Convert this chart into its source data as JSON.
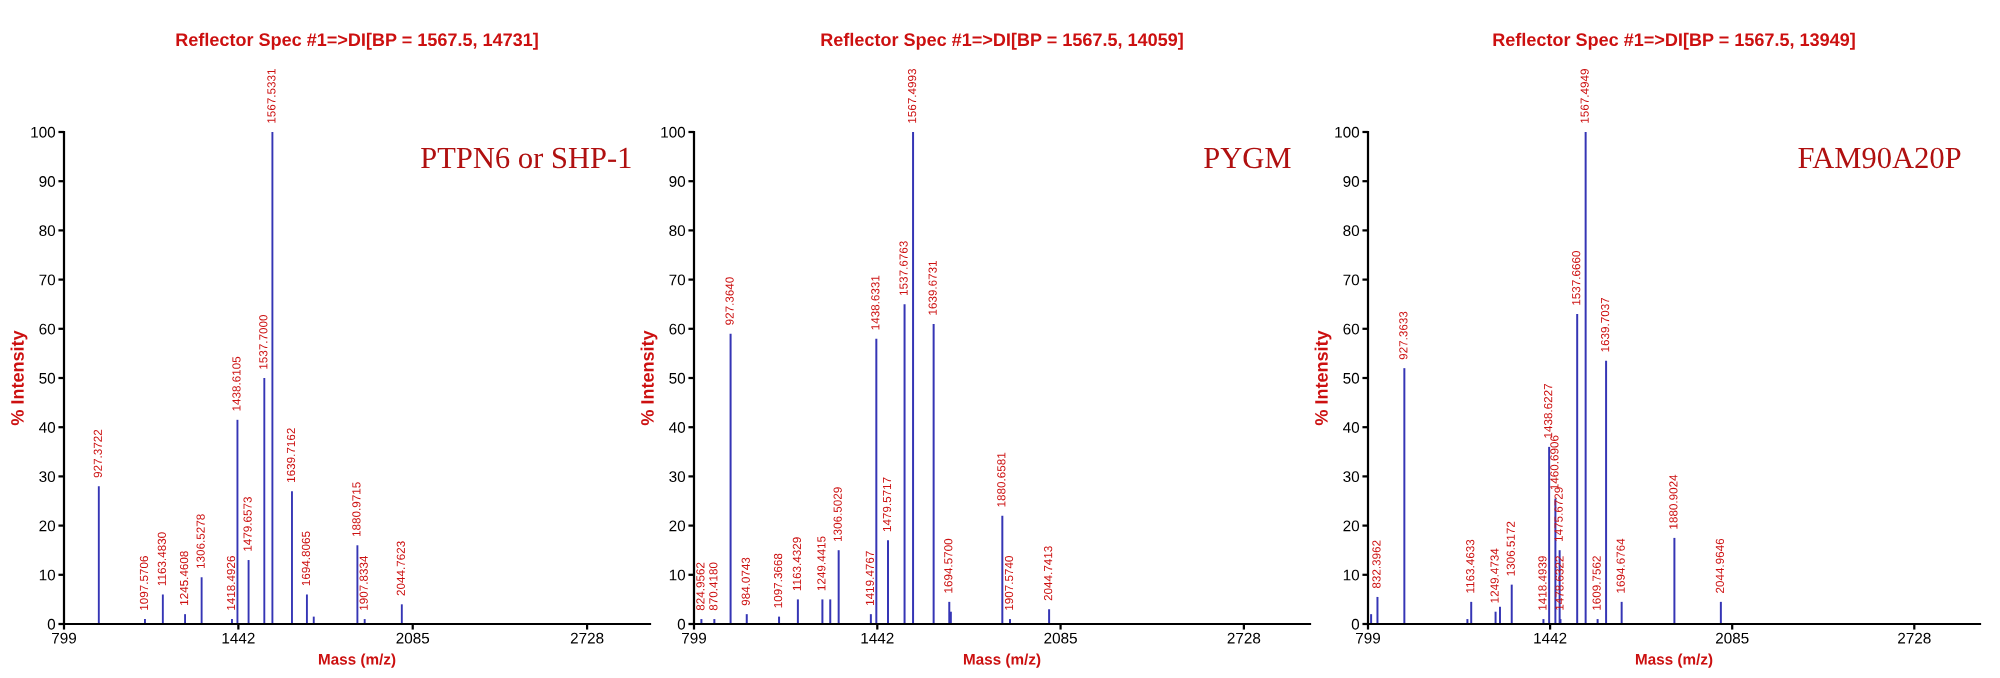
{
  "chart_data": [
    {
      "type": "bar",
      "title": "Reflector Spec #1=>DI[BP = 1567.5, 14731]",
      "xlabel": "Mass (m/z)",
      "ylabel": "% Intensity",
      "color": "#3535b5",
      "x": [
        927.3722,
        1097.5706,
        1163.483,
        1245.4608,
        1306.5278,
        1418.4926,
        1438.6105,
        1479.6573,
        1537.7,
        1567.5331,
        1639.7162,
        1694.8065,
        1720,
        1880.9715,
        1907.8334,
        2044.7623
      ],
      "values": [
        28,
        1,
        6,
        2,
        9.5,
        1,
        41.5,
        13,
        50,
        100,
        27,
        6,
        1.5,
        16,
        1,
        4
      ],
      "xlim": [
        799,
        2960
      ],
      "xticks": [
        799,
        1442,
        2085,
        2728
      ],
      "ylim": [
        0,
        100
      ],
      "yticks": [
        0,
        10,
        20,
        30,
        40,
        50,
        60,
        70,
        80,
        90,
        100
      ],
      "annotations": [
        "PTPN6 or SHP-1",
        {
          "text": "927.3722",
          "x": 927.3722,
          "y": 28
        },
        {
          "text": "1097.5706",
          "x": 1097.5706,
          "y": 1
        },
        {
          "text": "1163.4830",
          "x": 1163.483,
          "y": 6
        },
        {
          "text": "1245.4608",
          "x": 1245.4608,
          "y": 2
        },
        {
          "text": "1306.5278",
          "x": 1306.5278,
          "y": 9.5
        },
        {
          "text": "1418.4926",
          "x": 1418.4926,
          "y": 1
        },
        {
          "text": "1438.6105",
          "x": 1438.6105,
          "y": 41.5
        },
        {
          "text": "1479.6573",
          "x": 1479.6573,
          "y": 13
        },
        {
          "text": "1537.7000",
          "x": 1537.7,
          "y": 50
        },
        {
          "text": "1567.5331",
          "x": 1567.5331,
          "y": 100
        },
        {
          "text": "1639.7162",
          "x": 1639.7162,
          "y": 27
        },
        {
          "text": "1694.8065",
          "x": 1694.8065,
          "y": 6
        },
        {
          "text": "1880.9715",
          "x": 1880.9715,
          "y": 16
        },
        {
          "text": "1907.8334",
          "x": 1907.8334,
          "y": 1
        },
        {
          "text": "2044.7623",
          "x": 2044.7623,
          "y": 4
        }
      ]
    },
    {
      "type": "bar",
      "title": "Reflector Spec #1=>DI[BP = 1567.5, 14059]",
      "xlabel": "Mass (m/z)",
      "ylabel": "% Intensity",
      "color": "#3535b5",
      "x": [
        824.9562,
        870.418,
        927.364,
        984.0743,
        1097.3668,
        1163.4329,
        1249.4415,
        1277,
        1306.5029,
        1419.4767,
        1438.6331,
        1479.5717,
        1537.6763,
        1567.4993,
        1639.6731,
        1694.57,
        1700,
        1880.6581,
        1907.574,
        2044.7413
      ],
      "values": [
        1,
        1,
        59,
        2,
        1.5,
        5,
        5,
        5,
        15,
        2,
        58,
        17,
        65,
        100,
        61,
        4.5,
        2.5,
        22,
        1,
        3
      ],
      "xlim": [
        799,
        2960
      ],
      "xticks": [
        799,
        1442,
        2085,
        2728
      ],
      "ylim": [
        0,
        100
      ],
      "yticks": [
        0,
        10,
        20,
        30,
        40,
        50,
        60,
        70,
        80,
        90,
        100
      ],
      "annotations": [
        "PYGM",
        {
          "text": "824.9562",
          "x": 824.9562,
          "y": 1
        },
        {
          "text": "870.4180",
          "x": 870.418,
          "y": 1
        },
        {
          "text": "927.3640",
          "x": 927.364,
          "y": 59
        },
        {
          "text": "984.0743",
          "x": 984.0743,
          "y": 2
        },
        {
          "text": "1097.3668",
          "x": 1097.3668,
          "y": 1.5
        },
        {
          "text": "1163.4329",
          "x": 1163.4329,
          "y": 5
        },
        {
          "text": "1249.4415",
          "x": 1249.4415,
          "y": 5
        },
        {
          "text": "1306.5029",
          "x": 1306.5029,
          "y": 15
        },
        {
          "text": "1419.4767",
          "x": 1419.4767,
          "y": 2
        },
        {
          "text": "1438.6331",
          "x": 1438.6331,
          "y": 58
        },
        {
          "text": "1479.5717",
          "x": 1479.5717,
          "y": 17
        },
        {
          "text": "1537.6763",
          "x": 1537.6763,
          "y": 65
        },
        {
          "text": "1567.4993",
          "x": 1567.4993,
          "y": 100
        },
        {
          "text": "1639.6731",
          "x": 1639.6731,
          "y": 61
        },
        {
          "text": "1694.5700",
          "x": 1694.57,
          "y": 4.5
        },
        {
          "text": "1880.6581",
          "x": 1880.6581,
          "y": 22
        },
        {
          "text": "1907.5740",
          "x": 1907.574,
          "y": 1
        },
        {
          "text": "2044.7413",
          "x": 2044.7413,
          "y": 3
        }
      ]
    },
    {
      "type": "bar",
      "title": "Reflector Spec #1=>DI[BP = 1567.5, 13949]",
      "xlabel": "Mass (m/z)",
      "ylabel": "% Intensity",
      "color": "#3535b5",
      "x": [
        810,
        832.3962,
        927.3633,
        1150,
        1163.4633,
        1249.4734,
        1265,
        1306.5172,
        1418.4939,
        1438.6227,
        1460.6906,
        1475.6729,
        1478.6322,
        1537.666,
        1567.4949,
        1609.7562,
        1639.7037,
        1694.6764,
        1880.9024,
        2044.9646
      ],
      "values": [
        2,
        5.5,
        52,
        1,
        4.5,
        2.5,
        3.5,
        8,
        1,
        36,
        25.5,
        15,
        1,
        63,
        100,
        1,
        53.5,
        4.5,
        17.5,
        4.5
      ],
      "xlim": [
        799,
        2960
      ],
      "xticks": [
        799,
        1442,
        2085,
        2728
      ],
      "ylim": [
        0,
        100
      ],
      "yticks": [
        0,
        10,
        20,
        30,
        40,
        50,
        60,
        70,
        80,
        90,
        100
      ],
      "annotations": [
        "FAM90A20P",
        {
          "text": "832.3962",
          "x": 832.3962,
          "y": 5.5
        },
        {
          "text": "927.3633",
          "x": 927.3633,
          "y": 52
        },
        {
          "text": "1163.4633",
          "x": 1163.4633,
          "y": 4.5
        },
        {
          "text": "1249.4734",
          "x": 1249.4734,
          "y": 2.5
        },
        {
          "text": "1306.5172",
          "x": 1306.5172,
          "y": 8
        },
        {
          "text": "1418.4939",
          "x": 1418.4939,
          "y": 1
        },
        {
          "text": "1438.6227",
          "x": 1438.6227,
          "y": 36
        },
        {
          "text": "1460.6906",
          "x": 1460.6906,
          "y": 25.5
        },
        {
          "text": "1475.6729",
          "x": 1475.6729,
          "y": 15
        },
        {
          "text": "1478.6322",
          "x": 1478.6322,
          "y": 1
        },
        {
          "text": "1537.6660",
          "x": 1537.666,
          "y": 63
        },
        {
          "text": "1567.4949",
          "x": 1567.4949,
          "y": 100
        },
        {
          "text": "1609.7562",
          "x": 1609.7562,
          "y": 1
        },
        {
          "text": "1639.7037",
          "x": 1639.7037,
          "y": 53.5
        },
        {
          "text": "1694.6764",
          "x": 1694.6764,
          "y": 4.5
        },
        {
          "text": "1880.9024",
          "x": 1880.9024,
          "y": 17.5
        },
        {
          "text": "2044.9646",
          "x": 2044.9646,
          "y": 4.5
        }
      ]
    }
  ]
}
